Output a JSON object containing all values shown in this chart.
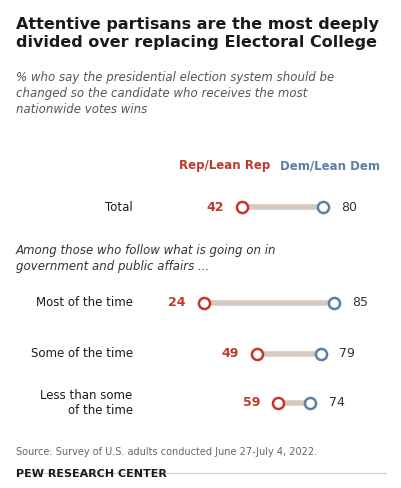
{
  "title": "Attentive partisans are the most deeply\ndivided over replacing Electoral College",
  "subtitle": "% who say the presidential election system should be\nchanged so the candidate who receives the most\nnationwide votes wins",
  "legend_rep": "Rep/Lean Rep",
  "legend_dem": "Dem/Lean Dem",
  "rows": [
    {
      "label": "Total",
      "rep": 42,
      "dem": 80,
      "group": "total"
    },
    {
      "label": "Most of the time",
      "rep": 24,
      "dem": 85,
      "group": "sub"
    },
    {
      "label": "Some of the time",
      "rep": 49,
      "dem": 79,
      "group": "sub"
    },
    {
      "label": "Less than some\nof the time",
      "rep": 59,
      "dem": 74,
      "group": "sub"
    }
  ],
  "subheader": "Among those who follow what is going on in\ngovernment and public affairs ...",
  "source": "Source: Survey of U.S. adults conducted June 27-July 4, 2022.",
  "footer": "PEW RESEARCH CENTER",
  "rep_color": "#c0392b",
  "dem_color": "#5b7fa6",
  "line_color": "#d5c9c0",
  "bg_color": "#ffffff",
  "x_min": 0,
  "x_max": 100
}
